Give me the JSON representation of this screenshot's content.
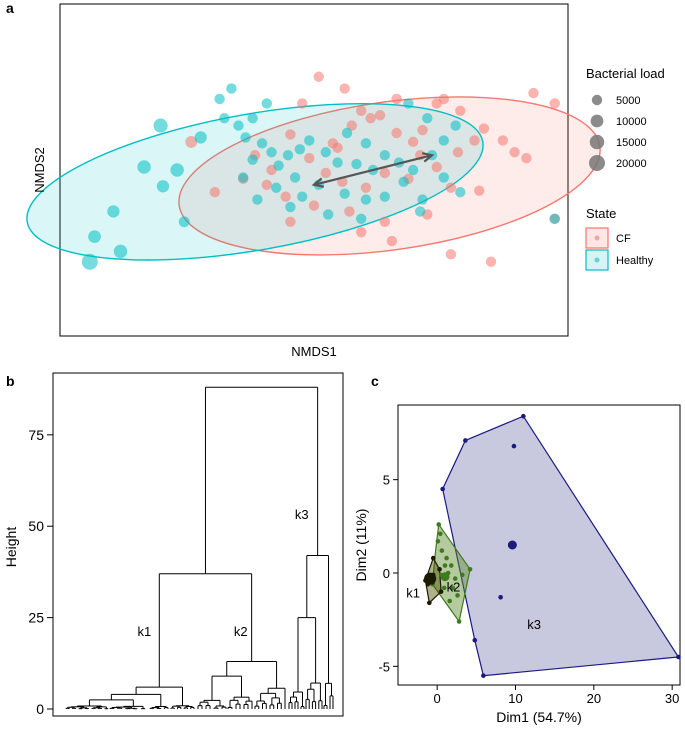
{
  "chart_data": [
    {
      "panel": "a",
      "type": "scatter",
      "xlabel": "NMDS1",
      "ylabel": "NMDS2",
      "xlim": [
        -1,
        1
      ],
      "ylim": [
        -1,
        1
      ],
      "legend": {
        "size_title": "Bacterial load",
        "sizes": [
          {
            "label": "5000",
            "value": 5000
          },
          {
            "label": "10000",
            "value": 10000
          },
          {
            "label": "15000",
            "value": 15000
          },
          {
            "label": "20000",
            "value": 20000
          }
        ],
        "state_title": "State",
        "placement": "right",
        "states": [
          "CF",
          "Healthy"
        ]
      },
      "series": [
        {
          "name": "CF",
          "color": "#f8766d",
          "points": [
            [
              0.02,
              0.63
            ],
            [
              0.13,
              0.55
            ],
            [
              0.2,
              0.4
            ],
            [
              0.24,
              0.35
            ],
            [
              0.28,
              0.37
            ],
            [
              0.35,
              0.25
            ],
            [
              0.42,
              0.19
            ],
            [
              0.46,
              0.27
            ],
            [
              0.45,
              0.1
            ],
            [
              0.52,
              0.02
            ],
            [
              0.61,
              0.12
            ],
            [
              0.72,
              0.28
            ],
            [
              0.8,
              0.2
            ],
            [
              0.85,
              0.12
            ],
            [
              0.93,
              0.52
            ],
            [
              0.9,
              0.08
            ],
            [
              0.52,
              0.45
            ],
            [
              0.35,
              0.48
            ],
            [
              0.16,
              0.3
            ],
            [
              0.08,
              0.18
            ],
            [
              -0.05,
              0.45
            ],
            [
              -0.1,
              0.24
            ],
            [
              -0.02,
              0.08
            ],
            [
              0.05,
              -0.02
            ],
            [
              0.12,
              -0.08
            ],
            [
              0.22,
              -0.12
            ],
            [
              0.3,
              -0.02
            ],
            [
              0.4,
              -0.06
            ],
            [
              0.58,
              -0.12
            ],
            [
              0.7,
              -0.14
            ],
            [
              0.48,
              -0.3
            ],
            [
              0.3,
              -0.35
            ],
            [
              0.15,
              -0.28
            ],
            [
              0.0,
              -0.24
            ],
            [
              -0.12,
              -0.18
            ],
            [
              -0.2,
              -0.1
            ],
            [
              -0.3,
              -0.06
            ],
            [
              -0.18,
              0.0
            ],
            [
              -0.25,
              0.1
            ],
            [
              -0.1,
              -0.35
            ],
            [
              -0.42,
              -0.15
            ],
            [
              -0.52,
              0.19
            ],
            [
              0.2,
              -0.42
            ],
            [
              0.33,
              -0.48
            ],
            [
              0.58,
              -0.57
            ],
            [
              0.75,
              -0.62
            ],
            [
              1.02,
              -0.33
            ],
            [
              0.62,
              0.4
            ],
            [
              1.02,
              0.45
            ],
            [
              0.68,
              0.2
            ],
            [
              0.55,
              0.48
            ],
            [
              0.1,
              0.15
            ]
          ],
          "loads": [
            5000,
            5000,
            5000,
            5000,
            5000,
            5000,
            5000,
            5000,
            5000,
            5000,
            5000,
            5000,
            5000,
            5000,
            5000,
            5000,
            5000,
            5000,
            5000,
            5000,
            5000,
            5000,
            5000,
            5000,
            5000,
            5000,
            5000,
            5000,
            5000,
            5000,
            5000,
            5000,
            5000,
            5000,
            5000,
            5000,
            5000,
            5000,
            5000,
            5000,
            5000,
            8000,
            5000,
            5000,
            5000,
            5000,
            5000,
            5000,
            5000,
            5000,
            5000,
            5000
          ]
        },
        {
          "name": "Healthy",
          "color": "#00bfc4",
          "points": [
            [
              -0.35,
              0.55
            ],
            [
              -0.38,
              0.35
            ],
            [
              -0.32,
              0.3
            ],
            [
              -0.26,
              0.35
            ],
            [
              -0.29,
              0.22
            ],
            [
              -0.22,
              0.18
            ],
            [
              -0.26,
              0.07
            ],
            [
              -0.18,
              0.12
            ],
            [
              -0.15,
              0.03
            ],
            [
              -0.11,
              0.1
            ],
            [
              -0.06,
              0.14
            ],
            [
              -0.02,
              0.2
            ],
            [
              0.05,
              0.12
            ],
            [
              0.1,
              0.05
            ],
            [
              0.14,
              0.25
            ],
            [
              0.22,
              0.18
            ],
            [
              0.3,
              0.1
            ],
            [
              0.36,
              0.05
            ],
            [
              0.42,
              0.0
            ],
            [
              0.5,
              0.1
            ],
            [
              0.55,
              0.2
            ],
            [
              0.6,
              0.3
            ],
            [
              0.48,
              0.35
            ],
            [
              0.4,
              0.45
            ],
            [
              0.38,
              -0.08
            ],
            [
              0.3,
              -0.18
            ],
            [
              0.22,
              -0.2
            ],
            [
              0.13,
              -0.16
            ],
            [
              0.02,
              -0.1
            ],
            [
              -0.08,
              -0.05
            ],
            [
              -0.16,
              -0.12
            ],
            [
              -0.24,
              -0.2
            ],
            [
              -0.1,
              -0.25
            ],
            [
              0.06,
              -0.3
            ],
            [
              0.2,
              -0.33
            ],
            [
              0.46,
              -0.2
            ],
            [
              0.55,
              -0.05
            ],
            [
              0.62,
              -0.15
            ],
            [
              -0.2,
              0.45
            ],
            [
              -0.4,
              0.48
            ],
            [
              -0.3,
              -0.05
            ],
            [
              -0.05,
              -0.18
            ],
            [
              0.45,
              -0.28
            ],
            [
              1.02,
              -0.33
            ],
            [
              0.25,
              0.0
            ],
            [
              0.18,
              0.04
            ],
            [
              -0.72,
              0.02
            ],
            [
              -0.65,
              0.3
            ],
            [
              -0.48,
              0.22
            ],
            [
              -0.58,
              0.0
            ],
            [
              -0.64,
              -0.11
            ],
            [
              -0.85,
              -0.28
            ],
            [
              -0.93,
              -0.45
            ],
            [
              -0.82,
              -0.55
            ],
            [
              -0.95,
              -0.62
            ],
            [
              -0.55,
              -0.35
            ]
          ],
          "loads": [
            5000,
            5000,
            5000,
            5000,
            5000,
            5000,
            5000,
            5000,
            5000,
            5000,
            5000,
            5000,
            5000,
            5000,
            5000,
            5000,
            5000,
            5000,
            5000,
            5000,
            5000,
            5000,
            5000,
            5000,
            5000,
            5000,
            5000,
            5000,
            5000,
            5000,
            5000,
            5000,
            5000,
            5000,
            5000,
            5000,
            5000,
            5000,
            5000,
            5000,
            5000,
            5000,
            5000,
            5000,
            5000,
            5000,
            12000,
            14000,
            9000,
            12000,
            9000,
            9000,
            10000,
            12000,
            20000,
            6000
          ]
        }
      ],
      "ellipses": [
        {
          "name": "CF",
          "cx": 0.32,
          "cy": -0.04,
          "rx": 0.9,
          "ry": 0.5,
          "angle": -8
        },
        {
          "name": "Healthy",
          "cx": -0.25,
          "cy": -0.08,
          "rx": 0.98,
          "ry": 0.46,
          "angle": -10
        }
      ],
      "arrow": {
        "from": [
          0.5,
          0.1
        ],
        "to": [
          0.0,
          -0.1
        ]
      }
    },
    {
      "panel": "b",
      "type": "dendrogram",
      "ylabel": "Height",
      "ylim": [
        0,
        90
      ],
      "yticks": [
        0,
        25,
        50,
        75
      ],
      "root_height": 88,
      "clusters": [
        {
          "name": "k1",
          "merge_height": 6,
          "label_height": 20
        },
        {
          "name": "k2",
          "merge_height": 13,
          "label_height": 20
        },
        {
          "name": "k3",
          "merge_height": 42,
          "label_height": 52
        }
      ],
      "k1k2_merge_height": 37
    },
    {
      "panel": "c",
      "type": "scatter",
      "xlabel": "Dim1 (54.7%)",
      "ylabel": "Dim2 (11%)",
      "xlim": [
        -5,
        31
      ],
      "ylim": [
        -6,
        9
      ],
      "xticks": [
        0,
        10,
        20,
        30
      ],
      "yticks": [
        -5,
        0,
        5
      ],
      "clusters": [
        {
          "name": "k1",
          "color": "#1a1a00",
          "fill": "#4d4d00",
          "hull": [
            [
              -1.5,
              -0.4
            ],
            [
              -0.5,
              0.8
            ],
            [
              0.3,
              0.2
            ],
            [
              0.5,
              -1.0
            ],
            [
              -1.0,
              -1.6
            ]
          ],
          "points": [
            [
              -1.5,
              -0.4
            ],
            [
              -0.5,
              0.8
            ],
            [
              0.3,
              0.2
            ],
            [
              0.5,
              -1.0
            ],
            [
              -1.0,
              -1.6
            ],
            [
              -1.1,
              -0.2
            ],
            [
              -0.8,
              -0.3
            ],
            [
              -0.5,
              -0.1
            ],
            [
              -1.2,
              -0.6
            ],
            [
              -0.6,
              -0.5
            ]
          ],
          "center": [
            -0.9,
            -0.3
          ]
        },
        {
          "name": "k2",
          "color": "#3f7a1f",
          "fill": "#5b8c2a",
          "hull": [
            [
              0.2,
              2.6
            ],
            [
              4.2,
              0.2
            ],
            [
              2.8,
              -2.6
            ],
            [
              -0.6,
              -0.6
            ],
            [
              -0.2,
              1.2
            ]
          ],
          "points": [
            [
              0.2,
              2.6
            ],
            [
              4.2,
              0.2
            ],
            [
              2.8,
              -2.6
            ],
            [
              -0.6,
              -0.6
            ],
            [
              0.1,
              1.7
            ],
            [
              0.6,
              1.2
            ],
            [
              1.2,
              0.8
            ],
            [
              1.8,
              0.4
            ],
            [
              2.3,
              -0.3
            ],
            [
              2.6,
              -1.2
            ],
            [
              1.6,
              -1.5
            ],
            [
              0.9,
              -0.8
            ],
            [
              0.5,
              -0.1
            ],
            [
              1.0,
              0.4
            ],
            [
              2.0,
              -0.8
            ],
            [
              3.2,
              -0.1
            ],
            [
              0.4,
              2.1
            ],
            [
              1.4,
              0.0
            ]
          ],
          "center": [
            1.0,
            -0.2
          ]
        },
        {
          "name": "k3",
          "color": "#1a1a80",
          "fill": "#6f6fa8",
          "hull": [
            [
              3.6,
              7.1
            ],
            [
              11,
              8.4
            ],
            [
              30.8,
              -4.5
            ],
            [
              5.9,
              -5.5
            ],
            [
              4.8,
              -3.6
            ],
            [
              0.7,
              4.5
            ]
          ],
          "points": [
            [
              3.6,
              7.1
            ],
            [
              11,
              8.4
            ],
            [
              9.8,
              6.8
            ],
            [
              0.7,
              4.5
            ],
            [
              8.1,
              -1.3
            ],
            [
              4.8,
              -3.6
            ],
            [
              5.9,
              -5.5
            ],
            [
              30.8,
              -4.5
            ]
          ],
          "center": [
            9.6,
            1.5
          ]
        }
      ]
    }
  ],
  "panels": {
    "a": "a",
    "b": "b",
    "c": "c"
  }
}
